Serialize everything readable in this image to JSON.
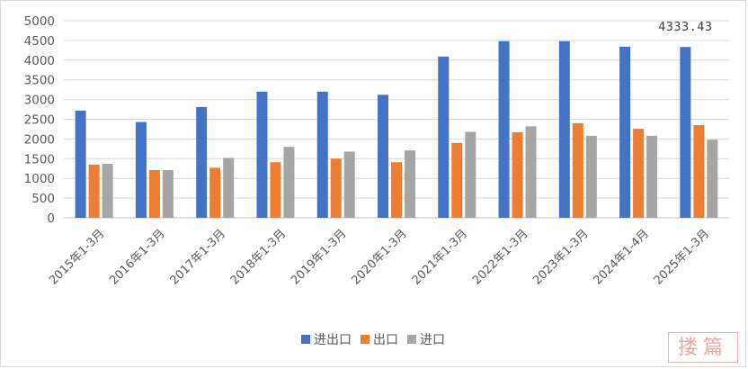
{
  "chart_data": {
    "type": "bar",
    "title": "",
    "xlabel": "",
    "ylabel": "",
    "ylim": [
      0,
      5000
    ],
    "yticks": [
      0,
      500,
      1000,
      1500,
      2000,
      2500,
      3000,
      3500,
      4000,
      4500,
      5000
    ],
    "grid": true,
    "legend_position": "bottom",
    "categories": [
      "2015年1-3月",
      "2016年1-3月",
      "2017年1-3月",
      "2018年1-3月",
      "2019年1-3月",
      "2020年1-3月",
      "2021年1-3月",
      "2022年1-3月",
      "2023年1-3月",
      "2024年1-4月",
      "2025年1-3月"
    ],
    "series": [
      {
        "name": "进出口",
        "color": "#4472c4",
        "values": [
          2720,
          2430,
          2810,
          3200,
          3200,
          3120,
          4090,
          4480,
          4480,
          4340,
          4333.43
        ]
      },
      {
        "name": "出口",
        "color": "#ed7d31",
        "values": [
          1350,
          1210,
          1270,
          1410,
          1500,
          1410,
          1900,
          2170,
          2400,
          2260,
          2350
        ]
      },
      {
        "name": "进口",
        "color": "#a5a5a5",
        "values": [
          1370,
          1210,
          1520,
          1800,
          1680,
          1710,
          2180,
          2320,
          2080,
          2080,
          1980
        ]
      }
    ],
    "annotations": [
      {
        "text": "4333.43",
        "category": "2025年1-3月",
        "series": "进出口"
      }
    ]
  },
  "watermark": {
    "text": "搂篇",
    "color": "#e39a93"
  }
}
